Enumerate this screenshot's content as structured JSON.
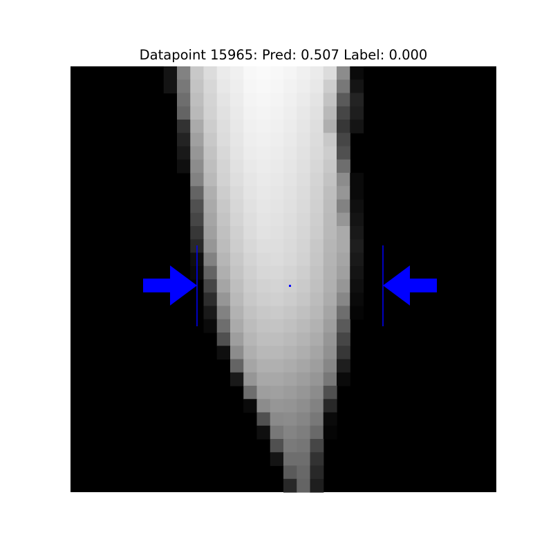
{
  "title": "Datapoint 15965: Pred: 0.507 Label: 0.000",
  "image": {
    "rows": 32,
    "cols": 32,
    "grayscale_rows": {
      "0": {
        "7": 20,
        "8": 130,
        "9": 200,
        "10": 220,
        "11": 235,
        "12": 240,
        "13": 248,
        "14": 250,
        "15": 248,
        "16": 245,
        "17": 240,
        "18": 235,
        "19": 220,
        "20": 140,
        "21": 10
      },
      "1": {
        "7": 20,
        "8": 120,
        "9": 195,
        "10": 215,
        "11": 232,
        "12": 238,
        "13": 246,
        "14": 248,
        "15": 246,
        "16": 242,
        "17": 238,
        "18": 232,
        "19": 205,
        "20": 120,
        "21": 20
      },
      "2": {
        "8": 110,
        "9": 190,
        "10": 212,
        "11": 228,
        "12": 236,
        "13": 244,
        "14": 246,
        "15": 244,
        "16": 240,
        "17": 235,
        "18": 228,
        "19": 195,
        "20": 90,
        "21": 35
      },
      "3": {
        "8": 100,
        "9": 185,
        "10": 210,
        "11": 225,
        "12": 234,
        "13": 242,
        "14": 244,
        "15": 242,
        "16": 238,
        "17": 232,
        "18": 225,
        "19": 185,
        "20": 70,
        "21": 30
      },
      "4": {
        "8": 50,
        "9": 170,
        "10": 205,
        "11": 222,
        "12": 232,
        "13": 240,
        "14": 242,
        "15": 240,
        "16": 236,
        "17": 230,
        "18": 222,
        "19": 175,
        "20": 55,
        "21": 20
      },
      "5": {
        "8": 35,
        "9": 160,
        "10": 200,
        "11": 220,
        "12": 230,
        "13": 238,
        "14": 240,
        "15": 238,
        "16": 234,
        "17": 228,
        "18": 220,
        "19": 200,
        "20": 70
      },
      "6": {
        "8": 25,
        "9": 150,
        "10": 195,
        "11": 216,
        "12": 228,
        "13": 236,
        "14": 238,
        "15": 236,
        "16": 232,
        "17": 226,
        "18": 218,
        "19": 205,
        "20": 80
      },
      "7": {
        "8": 15,
        "9": 140,
        "10": 190,
        "11": 212,
        "12": 225,
        "13": 233,
        "14": 236,
        "15": 234,
        "16": 230,
        "17": 224,
        "18": 215,
        "19": 200,
        "20": 110
      },
      "8": {
        "9": 130,
        "10": 185,
        "11": 210,
        "12": 222,
        "13": 230,
        "14": 234,
        "15": 232,
        "16": 228,
        "17": 222,
        "18": 212,
        "19": 195,
        "20": 140,
        "21": 10
      },
      "9": {
        "9": 100,
        "10": 175,
        "11": 205,
        "12": 218,
        "13": 228,
        "14": 232,
        "15": 230,
        "16": 226,
        "17": 220,
        "18": 210,
        "19": 190,
        "20": 150,
        "21": 10
      },
      "10": {
        "9": 80,
        "10": 170,
        "11": 200,
        "12": 215,
        "13": 225,
        "14": 230,
        "15": 228,
        "16": 224,
        "17": 218,
        "18": 208,
        "19": 188,
        "20": 130,
        "21": 15
      },
      "11": {
        "9": 70,
        "10": 165,
        "11": 196,
        "12": 212,
        "13": 222,
        "14": 228,
        "15": 226,
        "16": 222,
        "17": 216,
        "18": 206,
        "19": 186,
        "20": 150,
        "21": 20
      },
      "12": {
        "9": 55,
        "10": 160,
        "11": 192,
        "12": 208,
        "13": 220,
        "14": 226,
        "15": 224,
        "16": 220,
        "17": 214,
        "18": 204,
        "19": 185,
        "20": 170,
        "21": 25
      },
      "13": {
        "9": 40,
        "10": 150,
        "11": 188,
        "12": 205,
        "13": 216,
        "14": 222,
        "15": 222,
        "16": 218,
        "17": 212,
        "18": 200,
        "19": 182,
        "20": 170,
        "21": 30
      },
      "14": {
        "9": 15,
        "10": 130,
        "11": 182,
        "12": 200,
        "13": 212,
        "14": 218,
        "15": 220,
        "16": 216,
        "17": 210,
        "18": 198,
        "19": 180,
        "20": 165,
        "21": 25
      },
      "15": {
        "9": 10,
        "10": 100,
        "11": 175,
        "12": 196,
        "13": 208,
        "14": 215,
        "15": 216,
        "16": 212,
        "17": 206,
        "18": 195,
        "19": 178,
        "20": 160,
        "21": 20
      },
      "16": {
        "10": 70,
        "11": 165,
        "12": 190,
        "13": 204,
        "14": 210,
        "15": 212,
        "16": 208,
        "17": 202,
        "18": 192,
        "19": 176,
        "20": 150,
        "21": 15
      },
      "17": {
        "10": 45,
        "11": 150,
        "12": 185,
        "13": 200,
        "14": 206,
        "15": 208,
        "16": 204,
        "17": 198,
        "18": 188,
        "19": 172,
        "20": 135,
        "21": 10
      },
      "18": {
        "10": 25,
        "11": 130,
        "12": 178,
        "13": 194,
        "14": 200,
        "15": 202,
        "16": 198,
        "17": 192,
        "18": 184,
        "19": 165,
        "20": 110,
        "21": 5
      },
      "19": {
        "10": 10,
        "11": 110,
        "12": 170,
        "13": 188,
        "14": 195,
        "15": 196,
        "16": 192,
        "17": 186,
        "18": 178,
        "19": 158,
        "20": 90
      },
      "20": {
        "11": 80,
        "12": 158,
        "13": 182,
        "14": 190,
        "15": 190,
        "16": 186,
        "17": 180,
        "18": 172,
        "19": 150,
        "20": 70
      },
      "21": {
        "11": 15,
        "12": 140,
        "13": 175,
        "14": 184,
        "15": 184,
        "16": 180,
        "17": 174,
        "18": 165,
        "19": 145,
        "20": 55
      },
      "22": {
        "12": 100,
        "13": 165,
        "14": 176,
        "15": 176,
        "16": 172,
        "17": 166,
        "18": 158,
        "19": 135,
        "20": 30
      },
      "23": {
        "12": 25,
        "13": 150,
        "14": 168,
        "15": 168,
        "16": 164,
        "17": 158,
        "18": 150,
        "19": 120,
        "20": 10
      },
      "24": {
        "13": 110,
        "14": 158,
        "15": 160,
        "16": 156,
        "17": 150,
        "18": 140,
        "19": 80
      },
      "25": {
        "13": 10,
        "14": 140,
        "15": 150,
        "16": 148,
        "17": 142,
        "18": 130,
        "19": 40
      },
      "26": {
        "14": 80,
        "15": 138,
        "16": 140,
        "17": 134,
        "18": 120,
        "19": 10
      },
      "27": {
        "14": 15,
        "15": 120,
        "16": 132,
        "17": 126,
        "18": 105,
        "19": 5
      },
      "28": {
        "15": 80,
        "16": 122,
        "17": 118,
        "18": 70
      },
      "29": {
        "15": 20,
        "16": 110,
        "17": 110,
        "18": 50
      },
      "30": {
        "16": 90,
        "17": 104,
        "18": 40
      },
      "31": {
        "16": 40,
        "17": 100,
        "18": 30
      }
    }
  },
  "annotations": {
    "color": "#0000ff",
    "left_arrow": "right-pointing-arrow",
    "right_arrow": "left-pointing-arrow",
    "center_marker": "center-dot"
  }
}
